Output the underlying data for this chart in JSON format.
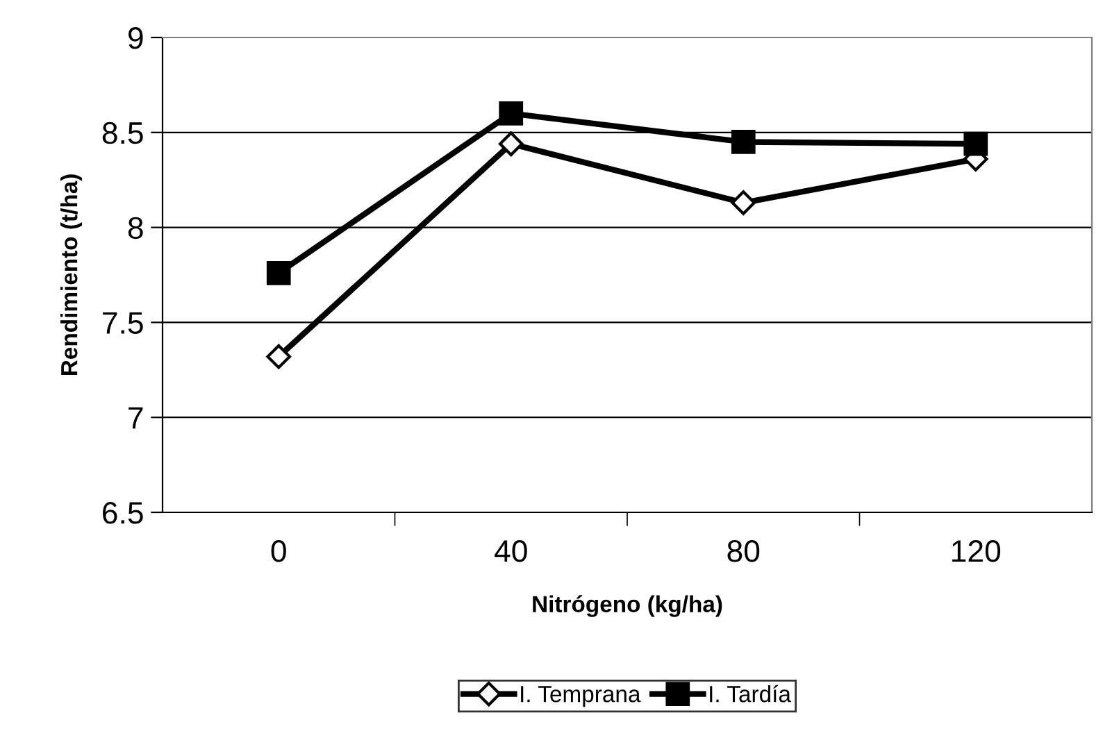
{
  "chart_data": {
    "type": "line",
    "xlabel": "Nitrógeno (kg/ha)",
    "ylabel": "Rendimiento (t/ha)",
    "categories": [
      "0",
      "40",
      "80",
      "120"
    ],
    "series": [
      {
        "name": "I. Temprana",
        "color": "#000000",
        "marker": "diamond",
        "values": [
          7.32,
          8.44,
          8.13,
          8.36
        ]
      },
      {
        "name": "I. Tardía",
        "color": "#000000",
        "marker": "square",
        "values": [
          7.76,
          8.6,
          8.45,
          8.44
        ]
      }
    ],
    "ylim": [
      6.5,
      9
    ],
    "yticks": [
      6.5,
      7,
      7.5,
      8,
      8.5,
      9
    ],
    "grid": "y",
    "legend": "bottom",
    "line_style": "solid"
  }
}
